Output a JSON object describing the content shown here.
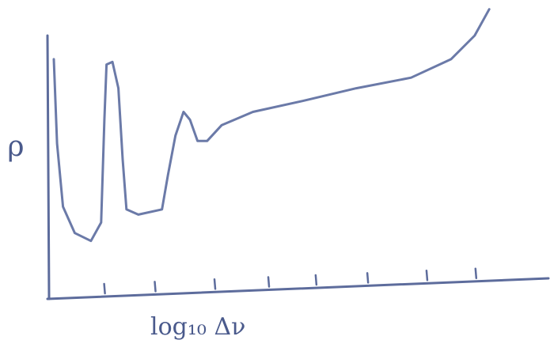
{
  "chart_data": {
    "type": "line",
    "xlabel": "log₁₀ Δν",
    "ylabel": "ρ",
    "color": "#6b7aa8",
    "x": [
      0.12,
      0.18,
      0.29,
      0.51,
      0.81,
      1.0,
      1.06,
      1.1,
      1.21,
      1.32,
      1.4,
      1.47,
      1.69,
      2.13,
      2.24,
      2.38,
      2.53,
      2.65,
      2.79,
      2.97,
      3.24,
      3.82,
      4.71,
      5.74,
      6.76,
      7.5,
      7.94,
      8.21
    ],
    "values": [
      9.1,
      5.9,
      3.5,
      2.5,
      2.2,
      2.9,
      6.8,
      8.9,
      9.0,
      8.0,
      5.3,
      3.4,
      3.2,
      3.4,
      4.7,
      6.2,
      7.1,
      6.8,
      6.0,
      6.0,
      6.6,
      7.1,
      7.5,
      8.0,
      8.4,
      9.1,
      10.0,
      11.0
    ],
    "xlim": [
      -0.88,
      9.34
    ],
    "ylim": [
      0,
      11.35
    ],
    "xticks": [
      1.07,
      2.01,
      3.12,
      4.12,
      5.0,
      5.96,
      7.06,
      7.97
    ]
  }
}
